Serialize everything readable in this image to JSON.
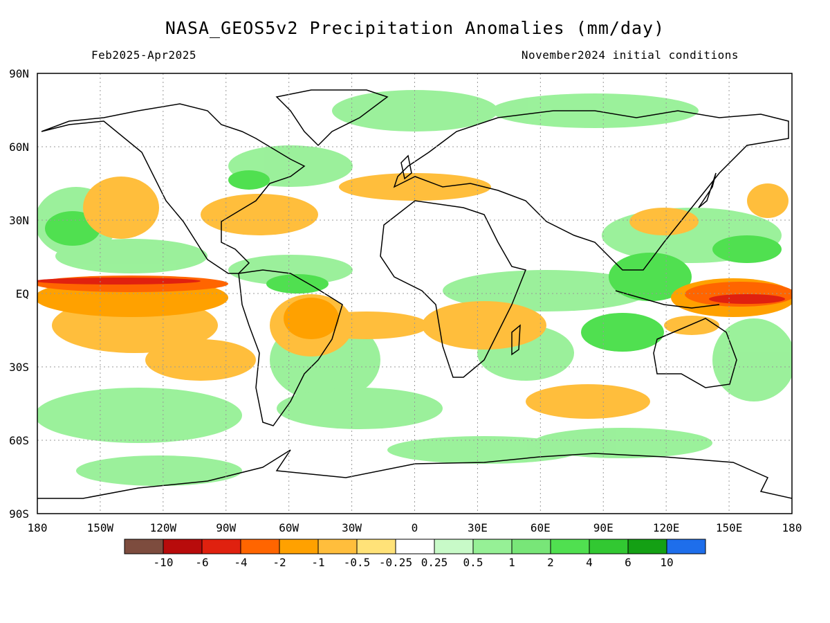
{
  "title": "NASA_GEOS5v2 Precipitation Anomalies (mm/day)",
  "subtitle_left": "Feb2025-Apr2025",
  "subtitle_right": "November2024 initial conditions",
  "lat_labels": [
    "90N",
    "60N",
    "30N",
    "EQ",
    "30S",
    "60S",
    "90S"
  ],
  "lon_labels": [
    "180",
    "150W",
    "120W",
    "90W",
    "60W",
    "30W",
    "0",
    "30E",
    "60E",
    "90E",
    "120E",
    "150E",
    "180"
  ],
  "colorbar": {
    "colors": [
      "#7d4c3e",
      "#b80b0b",
      "#e0210f",
      "#ff6500",
      "#ffa100",
      "#ffbe3c",
      "#ffe278",
      "#ffffff",
      "#c8fac8",
      "#96f096",
      "#78e678",
      "#50e050",
      "#32c832",
      "#14a014",
      "#1e6eeb"
    ],
    "labels": [
      "-10",
      "-6",
      "-4",
      "-2",
      "-1",
      "-0.5",
      "-0.25",
      "0.25",
      "0.5",
      "1",
      "2",
      "4",
      "6",
      "10"
    ]
  },
  "legend_colors": {
    "dry_strong": "#e0210f",
    "dry": "#ffa100",
    "dry_weak": "#ffbe3c",
    "wet_weak": "#c8fac8",
    "wet": "#78e678",
    "wet_strong": "#32c832"
  }
}
